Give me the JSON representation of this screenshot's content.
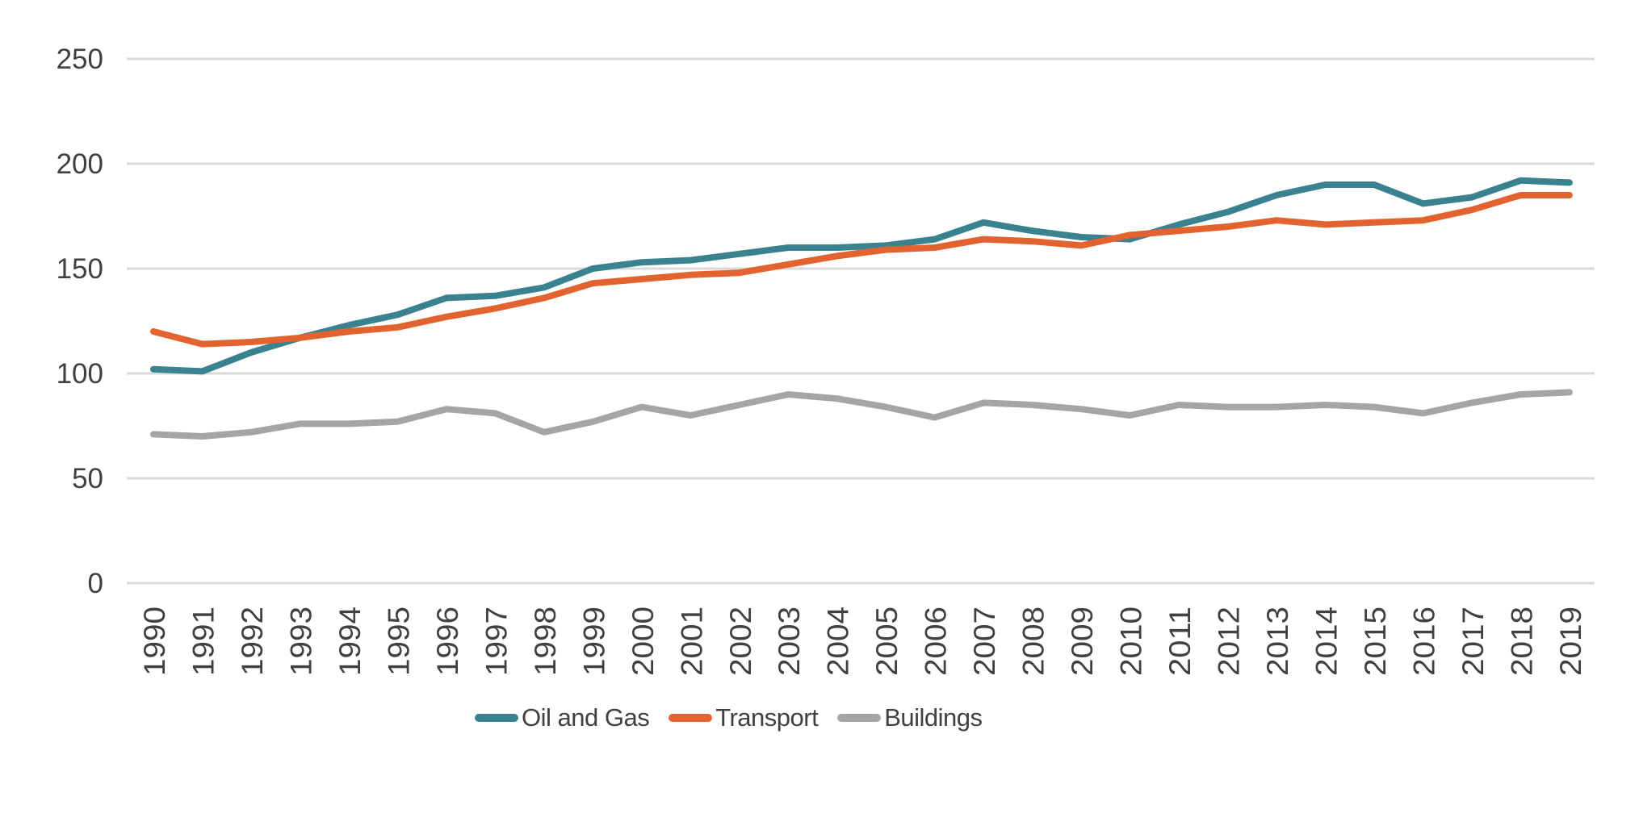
{
  "chart_data": {
    "type": "line",
    "title": "",
    "xlabel": "",
    "ylabel": "",
    "x": [
      "1990",
      "1991",
      "1992",
      "1993",
      "1994",
      "1995",
      "1996",
      "1997",
      "1998",
      "1999",
      "2000",
      "2001",
      "2002",
      "2003",
      "2004",
      "2005",
      "2006",
      "2007",
      "2008",
      "2009",
      "2010",
      "2011",
      "2012",
      "2013",
      "2014",
      "2015",
      "2016",
      "2017",
      "2018",
      "2019"
    ],
    "series": [
      {
        "name": "Oil and Gas",
        "color": "#3A8290",
        "values": [
          102,
          101,
          110,
          117,
          123,
          128,
          136,
          137,
          141,
          150,
          153,
          154,
          157,
          160,
          160,
          161,
          164,
          172,
          168,
          165,
          164,
          171,
          177,
          185,
          190,
          190,
          181,
          184,
          192,
          191
        ]
      },
      {
        "name": "Transport",
        "color": "#E2632F",
        "values": [
          120,
          114,
          115,
          117,
          120,
          122,
          127,
          131,
          136,
          143,
          145,
          147,
          148,
          152,
          156,
          159,
          160,
          164,
          163,
          161,
          166,
          168,
          170,
          173,
          171,
          172,
          173,
          178,
          185,
          185
        ]
      },
      {
        "name": "Buildings",
        "color": "#A5A5A5",
        "values": [
          71,
          70,
          72,
          76,
          76,
          77,
          83,
          81,
          72,
          77,
          84,
          80,
          85,
          90,
          88,
          84,
          79,
          86,
          85,
          83,
          80,
          85,
          84,
          84,
          85,
          84,
          81,
          86,
          90,
          91
        ]
      }
    ],
    "y_ticks": [
      0,
      50,
      100,
      150,
      200,
      250
    ],
    "ylim": [
      0,
      250
    ],
    "grid": "horizontal",
    "gridline_color": "#D9D9D9",
    "tick_label_color": "#404040",
    "background": "#FFFFFF",
    "legend_position": "bottom"
  }
}
